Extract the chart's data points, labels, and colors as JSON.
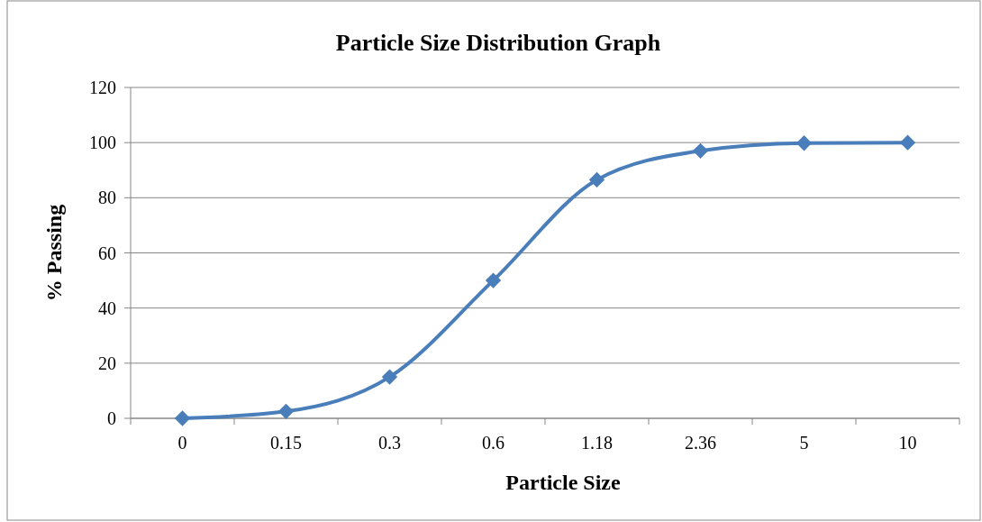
{
  "chart_data": {
    "type": "line",
    "title": "Particle Size Distribution Graph",
    "xlabel": "Particle Size",
    "ylabel": "% Passing",
    "categories": [
      "0",
      "0.15",
      "0.3",
      "0.6",
      "1.18",
      "2.36",
      "5",
      "10"
    ],
    "series": [
      {
        "color": "#4a7ebb",
        "values": [
          0,
          2.5,
          15,
          50,
          86.5,
          97,
          99.8,
          100
        ]
      }
    ],
    "ylim": [
      0,
      120
    ],
    "yticks": [
      0,
      20,
      40,
      60,
      80,
      100,
      120
    ],
    "grid": "y",
    "marker": "diamond",
    "line_style": "solid"
  }
}
